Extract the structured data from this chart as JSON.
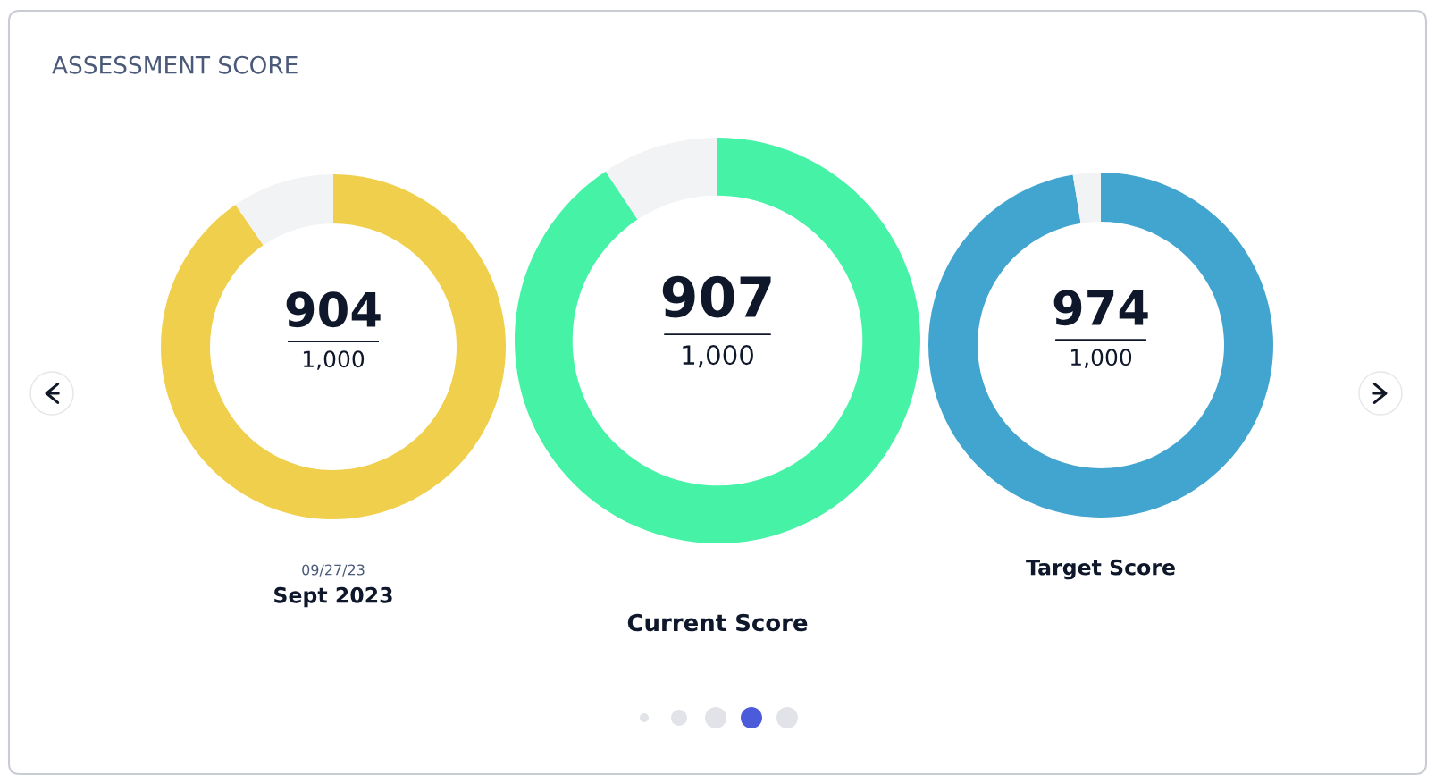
{
  "chart_data": [
    {
      "type": "other",
      "title": "ASSESSMENT SCORE"
    },
    {
      "type": "donut",
      "categories": [
        null,
        null
      ],
      "values": [
        90.7,
        9.3
      ],
      "colors": [
        "#45f2a6",
        "#f2f3f5"
      ],
      "annotations": [
        "907",
        "1,000"
      ],
      "title": "Current Score"
    },
    {
      "type": "donut",
      "categories": [
        null,
        null
      ],
      "values": [
        90.4,
        9.6
      ],
      "colors": [
        "#f0cf4c",
        "#f2f3f5"
      ],
      "annotations": [
        "904",
        "1,000"
      ],
      "subtitle": "09/27/23",
      "title": "Sept 2023"
    },
    {
      "type": "donut",
      "categories": [
        null,
        null
      ],
      "values": [
        97.4,
        2.6
      ],
      "colors": [
        "#42a5cf",
        "#f2f3f5"
      ],
      "annotations": [
        "974",
        "1,000"
      ],
      "title": "Target Score"
    }
  ]
}
